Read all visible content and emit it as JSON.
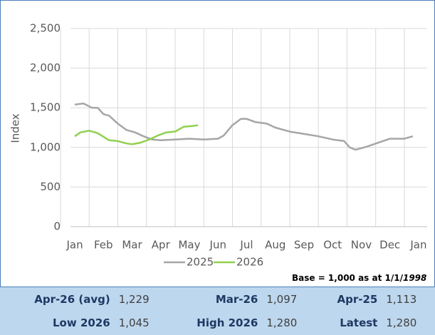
{
  "chart_data": {
    "type": "line",
    "ylabel": "Index",
    "xlim": [
      -0.15,
      12.3
    ],
    "xticks": [
      {
        "value": 0,
        "label": "Jan"
      },
      {
        "value": 1,
        "label": "Feb"
      },
      {
        "value": 2,
        "label": "Mar"
      },
      {
        "value": 3,
        "label": "Apr"
      },
      {
        "value": 4,
        "label": "May"
      },
      {
        "value": 5,
        "label": "Jun"
      },
      {
        "value": 6,
        "label": "Jul"
      },
      {
        "value": 7,
        "label": "Aug"
      },
      {
        "value": 8,
        "label": "Sep"
      },
      {
        "value": 9,
        "label": "Oct"
      },
      {
        "value": 10,
        "label": "Nov"
      },
      {
        "value": 11,
        "label": "Dec"
      },
      {
        "value": 12,
        "label": "Jan"
      }
    ],
    "ylim": [
      0,
      2500
    ],
    "yticks": [
      0,
      500,
      {
        "value": 1000,
        "label": "1,000"
      },
      {
        "value": 1500,
        "label": "1,500"
      },
      {
        "value": 2000,
        "label": "2,000"
      },
      {
        "value": 2500,
        "label": "2,500"
      }
    ],
    "grid": true,
    "series": [
      {
        "name": "2025",
        "color": "#a6a6a6",
        "x": [
          0,
          0.3,
          0.6,
          0.8,
          1.0,
          1.2,
          1.5,
          1.8,
          2.1,
          2.4,
          2.7,
          3.0,
          3.5,
          4.0,
          4.5,
          5.0,
          5.2,
          5.5,
          5.8,
          6.0,
          6.3,
          6.7,
          7.0,
          7.5,
          8.0,
          8.5,
          9.0,
          9.4,
          9.6,
          9.8,
          10.2,
          10.6,
          11.0,
          11.5,
          11.8
        ],
        "values": [
          1540,
          1555,
          1500,
          1500,
          1420,
          1400,
          1300,
          1220,
          1190,
          1140,
          1100,
          1090,
          1100,
          1110,
          1100,
          1110,
          1150,
          1280,
          1360,
          1360,
          1320,
          1300,
          1250,
          1200,
          1170,
          1140,
          1100,
          1080,
          1000,
          970,
          1010,
          1060,
          1110,
          1110,
          1140
        ]
      },
      {
        "name": "2026",
        "color": "#92d050",
        "x": [
          0,
          0.2,
          0.5,
          0.8,
          1.2,
          1.5,
          1.8,
          2.0,
          2.3,
          2.6,
          2.9,
          3.2,
          3.5,
          3.8,
          4.1,
          4.3
        ],
        "values": [
          1140,
          1190,
          1210,
          1180,
          1090,
          1080,
          1050,
          1040,
          1060,
          1100,
          1150,
          1190,
          1200,
          1260,
          1270,
          1280
        ]
      }
    ],
    "note": {
      "text": "Base = 1,000 as at 1/1/",
      "italic": "1998"
    }
  },
  "table": {
    "rows": [
      [
        "Apr-26 (avg)",
        "1,229",
        "Mar-26",
        "1,097",
        "Apr-25",
        "1,113"
      ],
      [
        "Low 2026",
        "1,045",
        "High 2026",
        "1,280",
        "Latest",
        "1,280"
      ]
    ]
  }
}
